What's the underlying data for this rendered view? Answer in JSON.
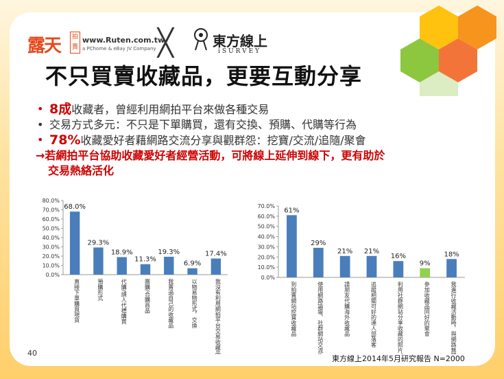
{
  "header": {
    "logo_lutian": "露天",
    "logo_lutian_tag": "拍賣",
    "logo_ruten_url": "www.Ruten.com.tw",
    "logo_ruten_sub": "a PChome & eBay JV Company",
    "cross": "╳",
    "logo_survey_name": "東方線上",
    "logo_survey_sub": "iSURVEY"
  },
  "title": "不只買賣收藏品，更要互動分享",
  "bullets": {
    "b1_hl": "8成",
    "b1_text": "收藏者，曾經利用網拍平台來做各種交易",
    "b2_text": "交易方式多元：不只是下單購買，還有交換、預購、代購等行為",
    "b3_hl": "78%",
    "b3_text": "收藏愛好者藉網路交流分享與觀群怨：挖寶/交流/追隨/聚會",
    "arrow_line1": "→若網拍平台協助收藏愛好者經營活動，可將線上延伸到線下，更有助於",
    "arrow_line2": "交易熱絡活化"
  },
  "colors": {
    "bar": "#4a7ebb",
    "bar_highlight": "#92d050",
    "accent": "#cc0000"
  },
  "footer": {
    "page_number": "40",
    "source": "東方線上2014年5月研究報告 N=2000"
  },
  "chart_data": [
    {
      "type": "bar",
      "categories": [
        "直接下單購買現貨",
        "預購形式",
        "代購/請人代標購買",
        "團購/合購商品",
        "我賣過自己的收藏品",
        "以物易物形式，交換",
        "我沒有利用網拍平台交易收藏品"
      ],
      "values": [
        68.0,
        29.3,
        18.9,
        11.3,
        19.3,
        6.9,
        17.4
      ],
      "value_labels": [
        "68.0%",
        "29.3%",
        "18.9%",
        "11.3%",
        "19.3%",
        "6.9%",
        "17.4%"
      ],
      "yticks": [
        "0.0%",
        "10.0%",
        "20.0%",
        "30.0%",
        "40.0%",
        "50.0%",
        "60.0%",
        "70.0%",
        "80.0%"
      ],
      "ylim": [
        0,
        80
      ],
      "grid": false
    },
    {
      "type": "bar",
      "categories": [
        "到拍賣網站挖寶收藏品",
        "使用網路論壇、社群網站交流收藏品訊息",
        "請朋友代購海外收藏品",
        "追蹤相關可好的達人部落客",
        "利用社群網站分享收藏的照片、心得",
        "參加收藏品同好的聚會",
        "我進行收藏活動時，與網路無關"
      ],
      "values": [
        61,
        29,
        21,
        21,
        16,
        9,
        18
      ],
      "value_labels": [
        "61%",
        "29%",
        "21%",
        "21%",
        "16%",
        "9%",
        "18%"
      ],
      "highlight_index": 5,
      "yticks": [
        "0.0%",
        "10.0%",
        "20.0%",
        "30.0%",
        "40.0%",
        "50.0%",
        "60.0%",
        "70.0%"
      ],
      "ylim": [
        0,
        70
      ],
      "grid": false
    }
  ]
}
